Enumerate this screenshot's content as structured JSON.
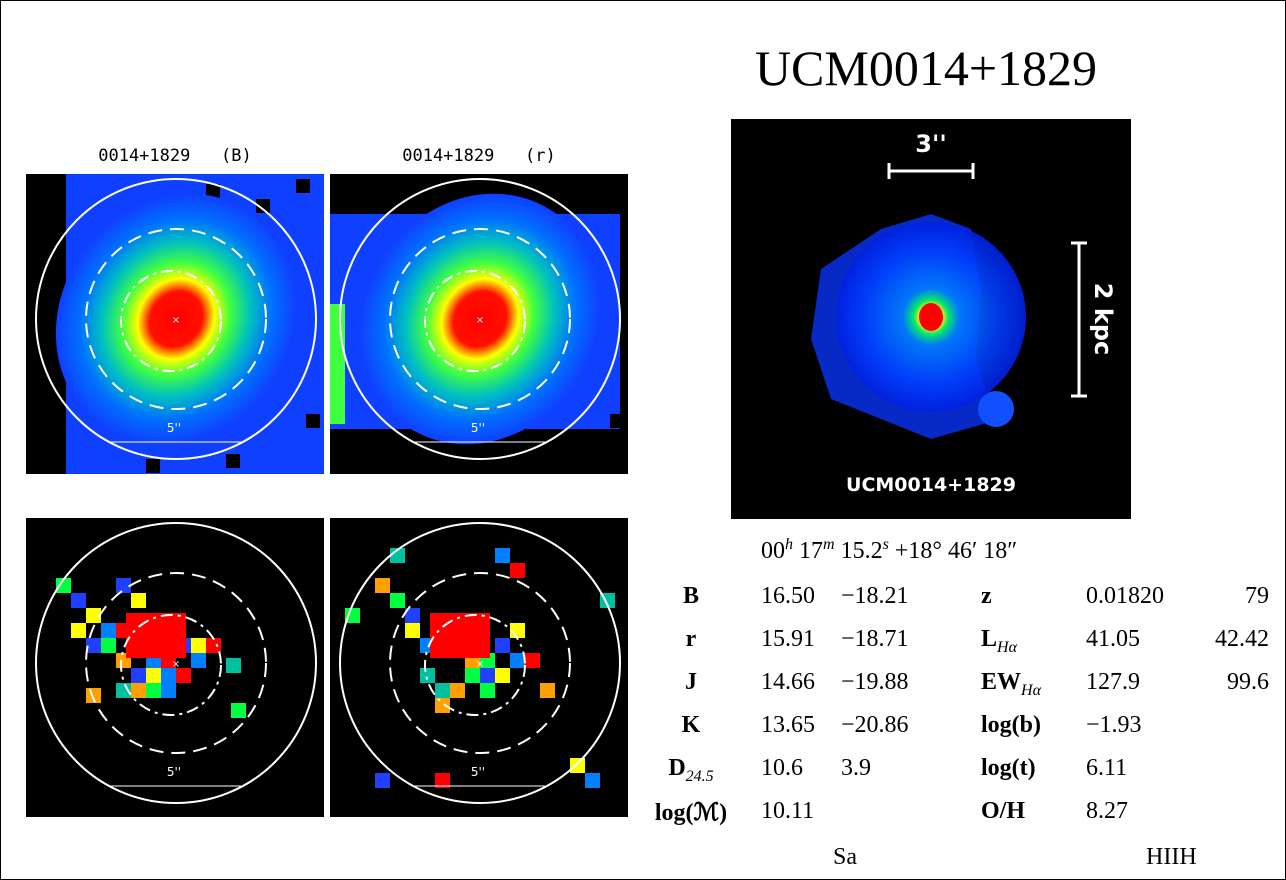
{
  "title": "UCM0014+1829",
  "panels": [
    {
      "title": "0014+1829   (B)",
      "scale": "5''"
    },
    {
      "title": "0014+1829   (r)",
      "scale": "5''"
    },
    {
      "scale": "5''"
    },
    {
      "scale": "5''"
    }
  ],
  "image": {
    "scale_angular": "3''",
    "scale_physical": "2 kpc",
    "label": "UCM0014+1829"
  },
  "coordinates": {
    "ra": [
      {
        "value": "00",
        "unit": "h"
      },
      {
        "value": "17",
        "unit": "m"
      },
      {
        "value": "15.2",
        "unit": "s"
      }
    ],
    "dec": [
      "+18°",
      "46′",
      "18″"
    ]
  },
  "table": {
    "rows": [
      {
        "label": "B",
        "values": [
          "16.50",
          "−18.21"
        ],
        "label2": "z",
        "values2": [
          "0.01820",
          "79"
        ]
      },
      {
        "label": "r",
        "values": [
          "15.91",
          "−18.71"
        ],
        "label2": "L",
        "label2_sub": "Hα",
        "values2": [
          "41.05",
          "42.42"
        ]
      },
      {
        "label": "J",
        "values": [
          "14.66",
          "−19.88"
        ],
        "label2": "EW",
        "label2_sub": "Hα",
        "values2": [
          "127.9",
          "99.6"
        ]
      },
      {
        "label": "K",
        "values": [
          "13.65",
          "−20.86"
        ],
        "label2": "log(b)",
        "values2": [
          "−1.93"
        ]
      },
      {
        "label": "D",
        "label_sub": "24.5",
        "values": [
          "10.6",
          "3.9"
        ],
        "label2": "log(t)",
        "values2": [
          "6.11"
        ]
      },
      {
        "label": "log(ℳ)",
        "values": [
          "10.11"
        ],
        "label2": "O/H",
        "values2": [
          "8.27"
        ]
      }
    ]
  },
  "morphology": "Sa",
  "class": "HIIH"
}
